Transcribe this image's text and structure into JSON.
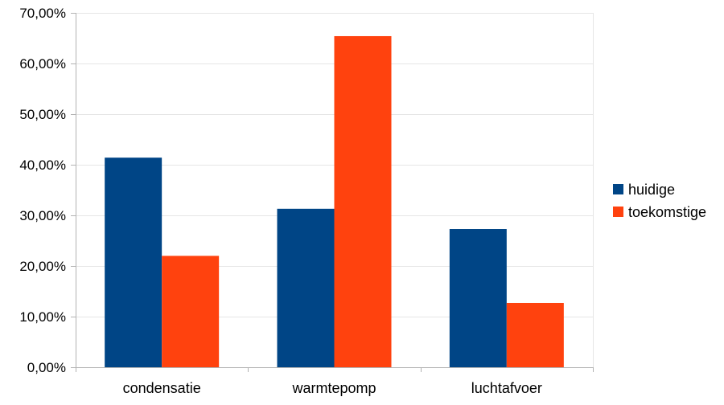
{
  "chart_data": {
    "type": "bar",
    "categories": [
      "condensatie",
      "warmtepomp",
      "luchtafvoer"
    ],
    "series": [
      {
        "name": "huidige",
        "values": [
          41.4,
          31.3,
          27.3
        ],
        "color": "#004586"
      },
      {
        "name": "toekomstige",
        "values": [
          22.0,
          65.4,
          12.7
        ],
        "color": "#ff420e"
      }
    ],
    "ylim": [
      0,
      70
    ],
    "yticks": [
      0,
      10,
      20,
      30,
      40,
      50,
      60,
      70
    ],
    "ytick_labels": [
      "0,00%",
      "10,00%",
      "20,00%",
      "30,00%",
      "40,00%",
      "50,00%",
      "60,00%",
      "70,00%"
    ],
    "grid": true,
    "legend_position": "right",
    "title": "",
    "xlabel": "",
    "ylabel": ""
  }
}
